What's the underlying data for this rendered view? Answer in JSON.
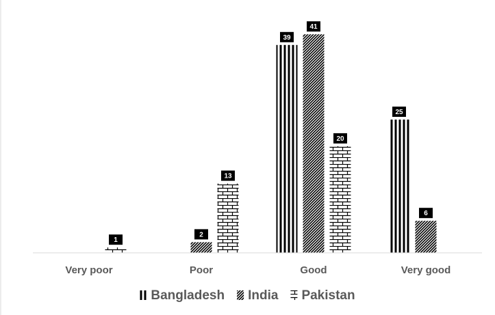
{
  "chart_data": {
    "type": "bar",
    "title": "",
    "xlabel": "",
    "ylabel": "",
    "categories": [
      "Very poor",
      "Poor",
      "Good",
      "Very good"
    ],
    "series": [
      {
        "name": "Bangladesh",
        "pattern": "vertical-stripes",
        "values": [
          null,
          null,
          39,
          25
        ]
      },
      {
        "name": "India",
        "pattern": "diagonal-hatch",
        "values": [
          null,
          2,
          41,
          6
        ]
      },
      {
        "name": "Pakistan",
        "pattern": "brick",
        "values": [
          1,
          13,
          20,
          null
        ]
      }
    ],
    "ylim": [
      0,
      41
    ],
    "grid": false,
    "legend": "bottom",
    "colors": {
      "ink": "#000000",
      "axis": "#d9d9d9",
      "text": "#595959",
      "label_bg": "#000000",
      "label_text": "#ffffff"
    }
  }
}
